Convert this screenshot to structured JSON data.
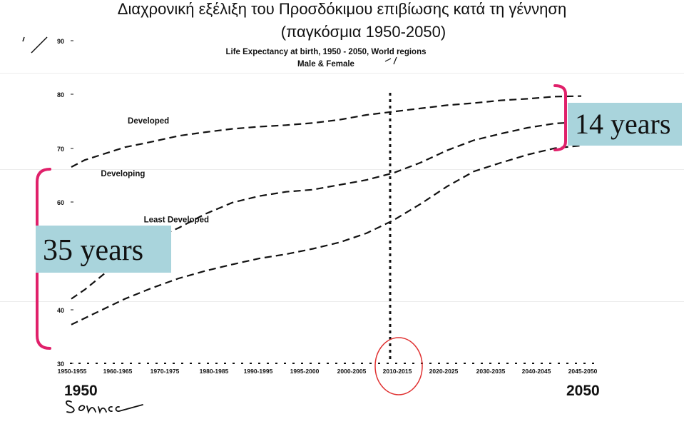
{
  "slide": {
    "title_line1": "Διαχρονική εξέλιξη του Προσδόκιμου επιβίωσης κατά τη γέννηση",
    "title_line2": "(παγκόσμια 1950-2050)",
    "callout_top": "14 years",
    "callout_bottom": "35  years",
    "year_start": "1950",
    "year_end": "2050",
    "accent_pink": "#e0206a",
    "highlight_red": "#e03030",
    "callout_fill": "#a9d4dc"
  },
  "chart_data": {
    "type": "line",
    "title": "Life Expectancy at birth, 1950 - 2050, World regions",
    "subtitle": "Male & Female",
    "xlabel": "",
    "ylabel": "",
    "categories": [
      "1950-1955",
      "1960-1965",
      "1970-1975",
      "1980-1985",
      "1990-1995",
      "1995-2000",
      "2000-2005",
      "2010-2015",
      "2020-2025",
      "2030-2035",
      "2040-2045",
      "2045-2050"
    ],
    "x": [
      1952.5,
      1955,
      1962.5,
      1967.5,
      1972.5,
      1977.5,
      1982.5,
      1987.5,
      1992.5,
      1997.5,
      2002.5,
      2007.5,
      2012.5,
      2017.5,
      2022.5,
      2027.5,
      2032.5,
      2037.5,
      2042.5,
      2047.5
    ],
    "ylim": [
      30,
      90
    ],
    "yticks": [
      30,
      40,
      60,
      70,
      80,
      90
    ],
    "grid": false,
    "series": [
      {
        "name": "Developed",
        "values": [
          66.5,
          67.8,
          70.2,
          71.2,
          72.3,
          73.0,
          73.6,
          74.0,
          74.3,
          74.7,
          75.3,
          76.2,
          76.8,
          77.4,
          78.0,
          78.4,
          78.9,
          79.2,
          79.6,
          79.7
        ]
      },
      {
        "name": "Developing",
        "values": [
          42.0,
          43.7,
          49.8,
          53.0,
          55.2,
          57.8,
          59.9,
          61.1,
          61.9,
          62.3,
          63.2,
          64.1,
          65.4,
          67.3,
          69.6,
          71.5,
          72.7,
          73.8,
          74.6,
          74.9
        ]
      },
      {
        "name": "Least Developed",
        "values": [
          37.2,
          38.4,
          42.0,
          44.0,
          45.8,
          47.2,
          48.4,
          49.5,
          50.3,
          51.3,
          52.5,
          54.2,
          56.6,
          59.6,
          62.9,
          65.7,
          67.3,
          68.8,
          70.0,
          70.5
        ]
      }
    ],
    "series_labels": [
      {
        "series": "Developed",
        "text": "Developed",
        "x": 1963,
        "y": 74.6
      },
      {
        "series": "Developing",
        "text": "Developing",
        "x": 1958,
        "y": 64.8
      },
      {
        "series": "Least Developed",
        "text": "Least Developed",
        "x": 1966,
        "y": 56.2
      }
    ],
    "annotations": {
      "highlight_period": "2010-2015",
      "bracket_top_years": "14 years",
      "bracket_bottom_years": "35  years"
    }
  }
}
